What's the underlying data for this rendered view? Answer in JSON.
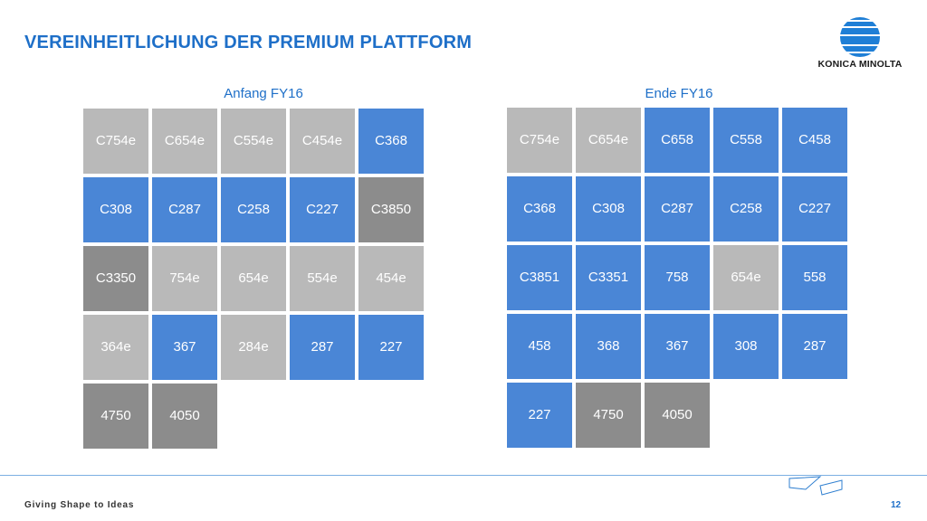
{
  "title": "VEREINHEITLICHUNG DER PREMIUM PLATTFORM",
  "logo": {
    "text": "KONICA MINOLTA"
  },
  "left": {
    "heading": "Anfang FY16",
    "tiles": [
      {
        "label": "C754e",
        "color": "gray"
      },
      {
        "label": "C654e",
        "color": "gray"
      },
      {
        "label": "C554e",
        "color": "gray"
      },
      {
        "label": "C454e",
        "color": "gray"
      },
      {
        "label": "C368",
        "color": "blue"
      },
      {
        "label": "C308",
        "color": "blue"
      },
      {
        "label": "C287",
        "color": "blue"
      },
      {
        "label": "C258",
        "color": "blue"
      },
      {
        "label": "C227",
        "color": "blue"
      },
      {
        "label": "C3850",
        "color": "dark"
      },
      {
        "label": "C3350",
        "color": "dark"
      },
      {
        "label": "754e",
        "color": "gray"
      },
      {
        "label": "654e",
        "color": "gray"
      },
      {
        "label": "554e",
        "color": "gray"
      },
      {
        "label": "454e",
        "color": "gray"
      },
      {
        "label": "364e",
        "color": "gray"
      },
      {
        "label": "367",
        "color": "blue"
      },
      {
        "label": "284e",
        "color": "gray"
      },
      {
        "label": "287",
        "color": "blue"
      },
      {
        "label": "227",
        "color": "blue"
      },
      {
        "label": "4750",
        "color": "dark"
      },
      {
        "label": "4050",
        "color": "dark"
      }
    ]
  },
  "right": {
    "heading": "Ende FY16",
    "tiles": [
      {
        "label": "C754e",
        "color": "gray"
      },
      {
        "label": "C654e",
        "color": "gray"
      },
      {
        "label": "C658",
        "color": "blue"
      },
      {
        "label": "C558",
        "color": "blue"
      },
      {
        "label": "C458",
        "color": "blue"
      },
      {
        "label": "C368",
        "color": "blue"
      },
      {
        "label": "C308",
        "color": "blue"
      },
      {
        "label": "C287",
        "color": "blue"
      },
      {
        "label": "C258",
        "color": "blue"
      },
      {
        "label": "C227",
        "color": "blue"
      },
      {
        "label": "C3851",
        "color": "blue"
      },
      {
        "label": "C3351",
        "color": "blue"
      },
      {
        "label": "758",
        "color": "blue"
      },
      {
        "label": "654e",
        "color": "gray"
      },
      {
        "label": "558",
        "color": "blue"
      },
      {
        "label": "458",
        "color": "blue"
      },
      {
        "label": "368",
        "color": "blue"
      },
      {
        "label": "367",
        "color": "blue"
      },
      {
        "label": "308",
        "color": "blue"
      },
      {
        "label": "287",
        "color": "blue"
      },
      {
        "label": "227",
        "color": "blue"
      },
      {
        "label": "4750",
        "color": "dark"
      },
      {
        "label": "4050",
        "color": "dark"
      }
    ]
  },
  "footer": {
    "slogan": "Giving Shape to Ideas",
    "page": "12"
  },
  "colors": {
    "accent": "#1e6fc8",
    "blue_tile": "#4a86d6",
    "gray_tile": "#b9b9b9",
    "dark_tile": "#8c8c8c"
  }
}
